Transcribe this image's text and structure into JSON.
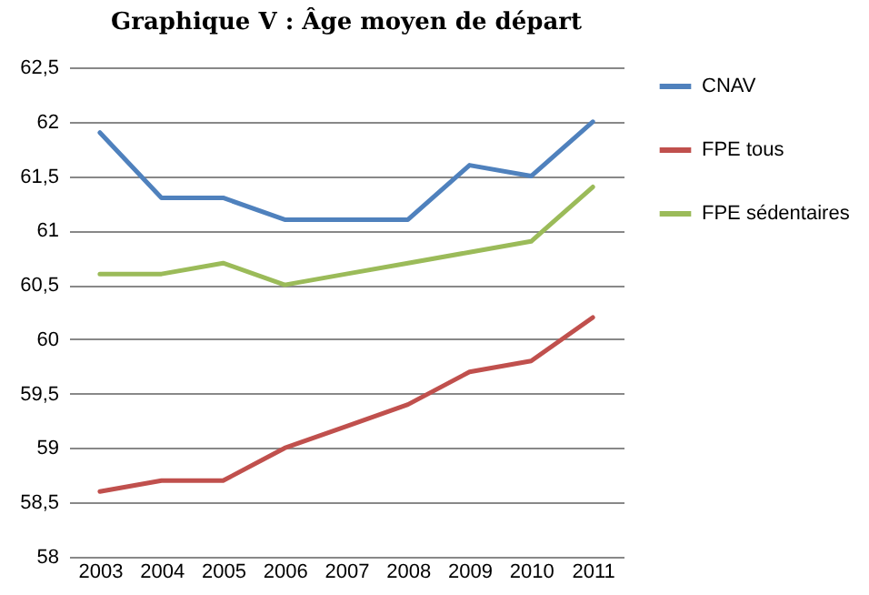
{
  "chart_data": {
    "type": "line",
    "title": "Graphique V : Âge moyen de départ",
    "categories": [
      "2003",
      "2004",
      "2005",
      "2006",
      "2007",
      "2008",
      "2009",
      "2010",
      "2011"
    ],
    "series": [
      {
        "name": "CNAV",
        "color": "#4f81bd",
        "values": [
          61.9,
          61.3,
          61.3,
          61.1,
          61.1,
          61.1,
          61.6,
          61.5,
          62.0
        ]
      },
      {
        "name": "FPE tous",
        "color": "#c0504d",
        "values": [
          58.6,
          58.7,
          58.7,
          59.0,
          59.2,
          59.4,
          59.7,
          59.8,
          60.2
        ]
      },
      {
        "name": "FPE sédentaires",
        "color": "#9bbb59",
        "values": [
          60.6,
          60.6,
          60.7,
          60.5,
          60.6,
          60.7,
          60.8,
          60.9,
          61.4
        ]
      }
    ],
    "ylim": [
      58,
      62.5
    ],
    "yticks": [
      58,
      {
        "value": 58.5,
        "label": "58,5"
      },
      59,
      {
        "value": 59.5,
        "label": "59,5"
      },
      60,
      {
        "value": 60.5,
        "label": "60,5"
      },
      61,
      {
        "value": 61.5,
        "label": "61,5"
      },
      62,
      {
        "value": 62.5,
        "label": "62,5"
      }
    ],
    "grid": "y",
    "legend": "right",
    "line_style": "solid",
    "marker": "none"
  }
}
